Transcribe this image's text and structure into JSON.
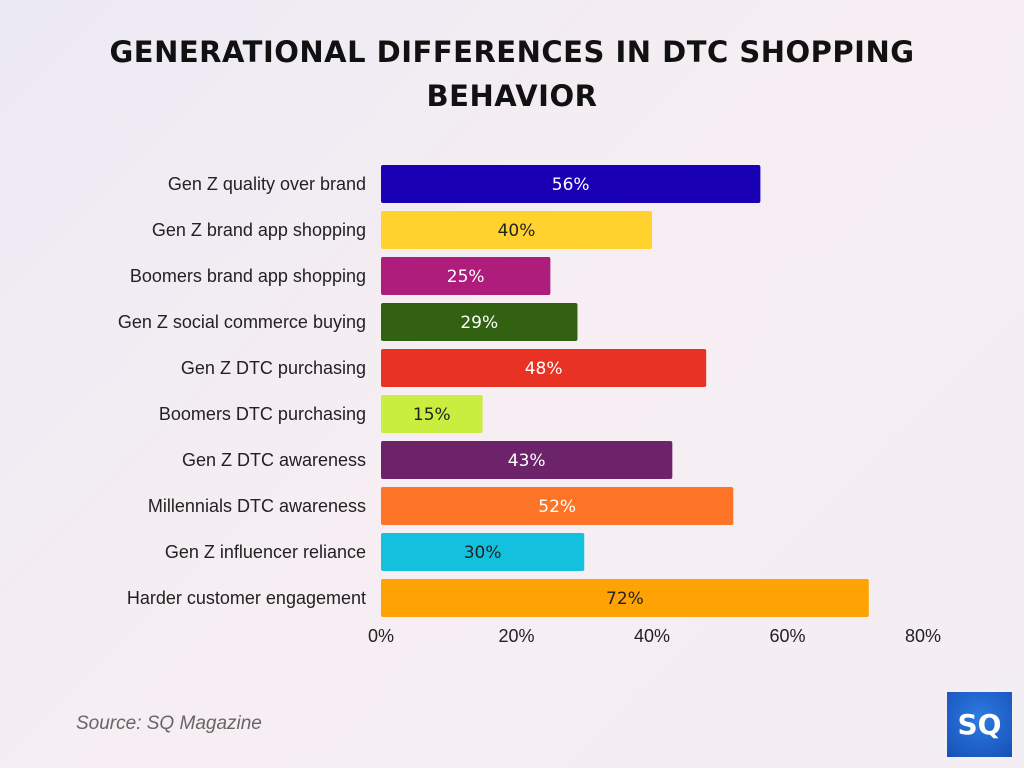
{
  "chart_data": {
    "type": "bar",
    "orientation": "horizontal",
    "title": "GENERATIONAL DIFFERENCES IN DTC SHOPPING BEHAVIOR",
    "categories": [
      "Gen Z quality over brand",
      "Gen Z brand app shopping",
      "Boomers brand app shopping",
      "Gen Z social commerce buying",
      "Gen Z DTC purchasing",
      "Boomers DTC purchasing",
      "Gen Z DTC awareness",
      "Millennials DTC awareness",
      "Gen Z influencer reliance",
      "Harder customer engagement"
    ],
    "values": [
      56,
      40,
      25,
      29,
      48,
      15,
      43,
      52,
      30,
      72
    ],
    "data_labels": [
      "56%",
      "40%",
      "25%",
      "29%",
      "48%",
      "15%",
      "43%",
      "52%",
      "30%",
      "72%"
    ],
    "colors": [
      "#1a00b4",
      "#ffd22e",
      "#ae1c7c",
      "#326112",
      "#e83223",
      "#c9ee3f",
      "#6c2369",
      "#fe7426",
      "#13c1df",
      "#fea303"
    ],
    "label_colors": [
      "#ffffff",
      "#222222",
      "#ffffff",
      "#ffffff",
      "#ffffff",
      "#222222",
      "#ffffff",
      "#ffffff",
      "#222222",
      "#222222"
    ],
    "xlim": [
      0,
      80
    ],
    "xticks": [
      0,
      20,
      40,
      60,
      80
    ],
    "xtick_labels": [
      "0%",
      "20%",
      "40%",
      "60%",
      "80%"
    ],
    "grid": false,
    "xlabel": "",
    "ylabel": ""
  },
  "source": "Source: SQ Magazine",
  "logo_text": "SQ"
}
